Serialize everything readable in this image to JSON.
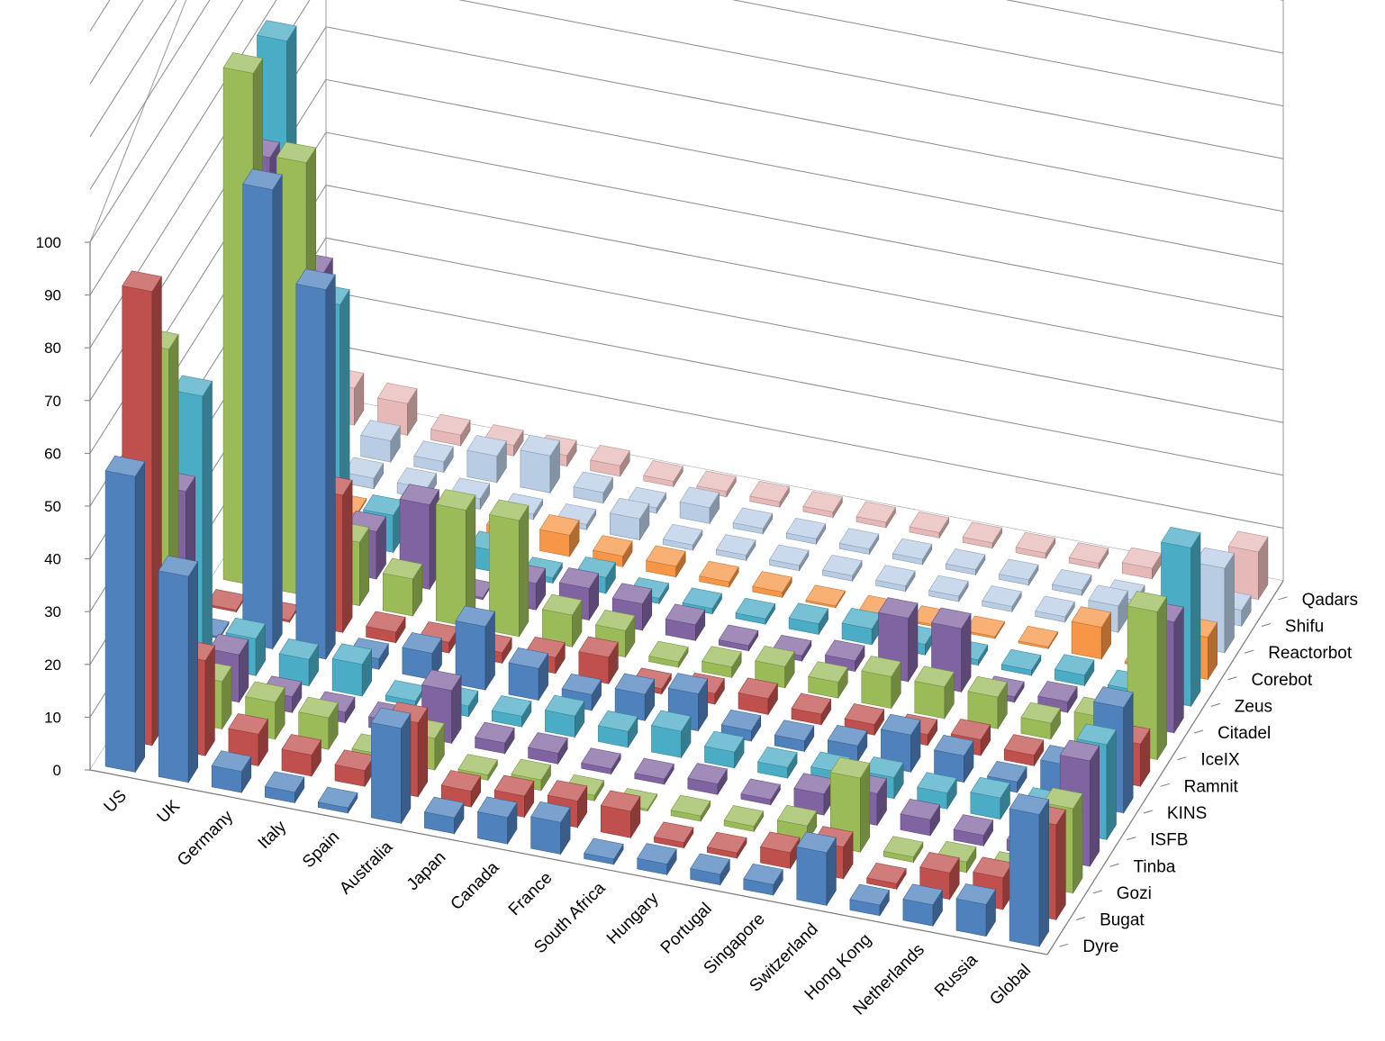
{
  "chart_data": {
    "type": "bar",
    "subtype": "3d-column",
    "title": "",
    "xlabel": "",
    "ylabel": "",
    "zlim": [
      0,
      100
    ],
    "z_ticks": [
      0,
      10,
      20,
      30,
      40,
      50,
      60,
      70,
      80,
      90,
      100
    ],
    "grid": true,
    "categories": [
      "US",
      "UK",
      "Germany",
      "Italy",
      "Spain",
      "Australia",
      "Japan",
      "Canada",
      "France",
      "South Africa",
      "Hungary",
      "Portugal",
      "Singapore",
      "Switzerland",
      "Hong Kong",
      "Netherlands",
      "Russia",
      "Global"
    ],
    "series": [
      {
        "name": "Dyre",
        "color": "#4f81bd",
        "values": [
          56,
          39,
          4,
          2,
          1,
          18,
          3,
          5,
          6,
          1,
          2,
          2,
          2,
          10,
          2,
          4,
          6,
          25
        ]
      },
      {
        "name": "Bugat",
        "color": "#c0504d",
        "values": [
          86,
          18,
          6,
          4,
          3,
          14,
          3,
          4,
          5,
          5,
          1,
          1,
          3,
          6,
          1,
          5,
          6,
          18
        ]
      },
      {
        "name": "Gozi",
        "color": "#9bbb59",
        "values": [
          70,
          9,
          7,
          6,
          1,
          6,
          1,
          2,
          1,
          0,
          1,
          1,
          3,
          14,
          1,
          2,
          2,
          16
        ]
      },
      {
        "name": "Tinba",
        "color": "#8064a2",
        "values": [
          38,
          9,
          3,
          2,
          2,
          10,
          2,
          2,
          1,
          1,
          2,
          1,
          4,
          6,
          3,
          2,
          2,
          20
        ]
      },
      {
        "name": "ISFB",
        "color": "#4bacc6",
        "values": [
          51,
          7,
          5,
          6,
          1,
          2,
          2,
          4,
          3,
          5,
          3,
          2,
          3,
          4,
          3,
          4,
          4,
          18
        ]
      },
      {
        "name": "KINS",
        "color": "#4f81bd",
        "values": [
          0,
          87,
          70,
          2,
          5,
          12,
          6,
          3,
          5,
          7,
          2,
          2,
          3,
          7,
          5,
          2,
          7,
          20
        ]
      },
      {
        "name": "Ramnit",
        "color": "#c0504d",
        "values": [
          0,
          0,
          26,
          2,
          2,
          2,
          3,
          5,
          1,
          2,
          3,
          2,
          2,
          2,
          3,
          2,
          2,
          8
        ]
      },
      {
        "name": "IceIX",
        "color": "#9bbb59",
        "values": [
          97,
          82,
          12,
          7,
          22,
          22,
          6,
          5,
          1,
          2,
          4,
          3,
          6,
          6,
          6,
          3,
          6,
          28
        ]
      },
      {
        "name": "Citadel",
        "color": "#8064a2",
        "values": [
          76,
          56,
          9,
          16,
          0,
          5,
          6,
          5,
          3,
          1,
          1,
          2,
          12,
          12,
          1,
          2,
          1,
          21
        ]
      },
      {
        "name": "Zeus",
        "color": "#4bacc6",
        "values": [
          93,
          45,
          7,
          6,
          4,
          1,
          3,
          1,
          1,
          1,
          2,
          3,
          2,
          1,
          1,
          2,
          1,
          30
        ]
      },
      {
        "name": "Corebot",
        "color": "#f79646",
        "values": [
          52,
          0,
          0,
          0,
          3,
          4,
          2,
          2,
          1,
          1,
          0,
          0,
          0,
          0,
          0,
          6,
          0,
          8
        ]
      },
      {
        "name": "Reactorbot",
        "color": "#b8cce4",
        "values": [
          7,
          2,
          2,
          2,
          1,
          1,
          4,
          1,
          1,
          1,
          1,
          1,
          1,
          1,
          1,
          5,
          1,
          16
        ]
      },
      {
        "name": "Shifu",
        "color": "#b8cce4",
        "values": [
          12,
          4,
          2,
          5,
          7,
          2,
          1,
          3,
          1,
          1,
          1,
          1,
          1,
          1,
          1,
          1,
          1,
          3
        ]
      },
      {
        "name": "Qadars",
        "color": "#e6b9b8",
        "values": [
          7,
          6,
          2,
          2,
          2,
          2,
          1,
          1,
          1,
          1,
          1,
          1,
          1,
          1,
          1,
          2,
          1,
          9
        ]
      }
    ]
  }
}
